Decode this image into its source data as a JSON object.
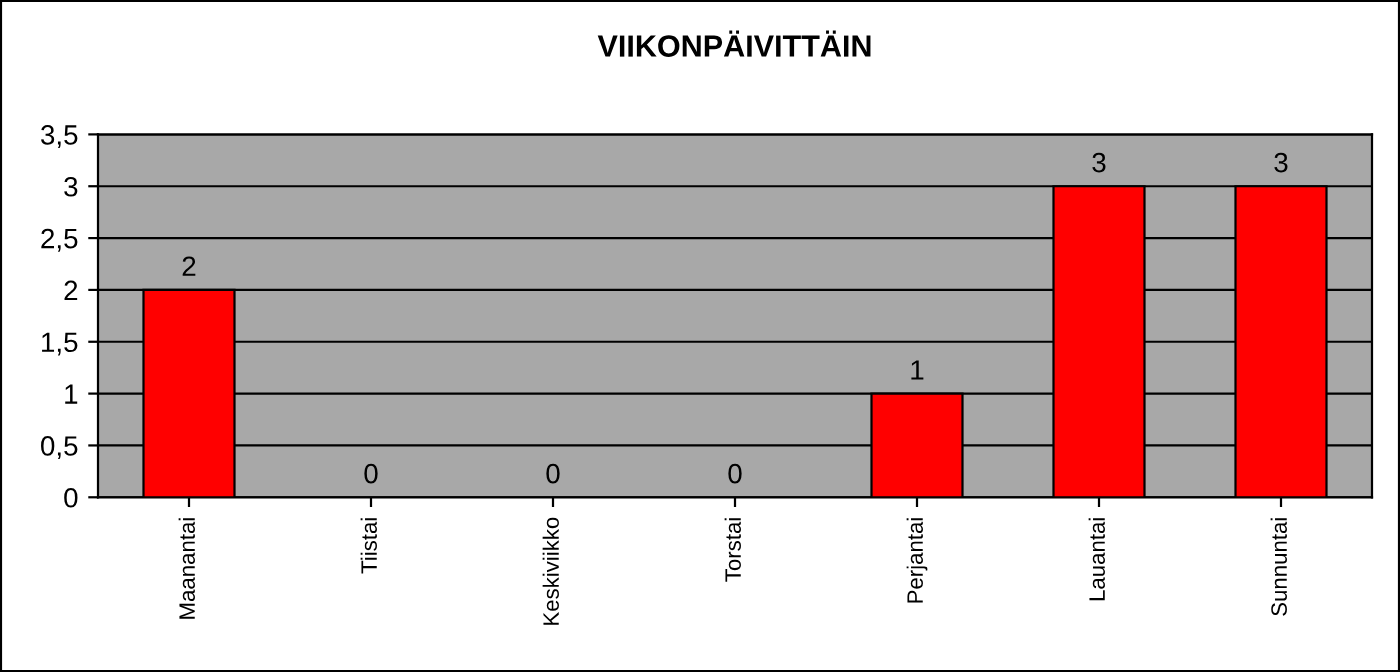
{
  "chart_data": {
    "type": "bar",
    "title": "VIIKONPÄIVITTÄIN",
    "categories": [
      "Maanantai",
      "Tiistai",
      "Keskiviikko",
      "Torstai",
      "Perjantai",
      "Lauantai",
      "Sunnuntai"
    ],
    "values": [
      2,
      0,
      0,
      0,
      1,
      3,
      3
    ],
    "color": "#ff0000",
    "ylim": [
      0,
      3.5
    ],
    "yticks": [
      0,
      {
        "value": 0.5,
        "label": "0,5"
      },
      1,
      {
        "value": 1.5,
        "label": "1,5"
      },
      2,
      {
        "value": 2.5,
        "label": "2,5"
      },
      3,
      {
        "value": 3.5,
        "label": "3,5"
      }
    ],
    "grid": "y",
    "data_labels": true,
    "legend": false
  }
}
